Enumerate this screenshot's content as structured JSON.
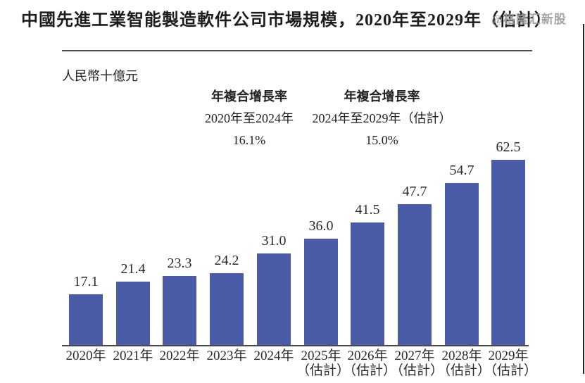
{
  "page": {
    "title": "中國先進工業智能製造軟件公司市場規模，2020年至2029年（估計）",
    "watermark": "@格隆汇新股"
  },
  "chart_data": {
    "type": "bar",
    "title": "中國先進工業智能製造軟件公司市場規模，2020年至2029年（估計）",
    "unit_label": "人民幣十億元",
    "ylabel": "人民幣十億元",
    "xlabel": "",
    "categories": [
      "2020年",
      "2021年",
      "2022年",
      "2023年",
      "2024年",
      "2025年",
      "2026年",
      "2027年",
      "2028年",
      "2029年"
    ],
    "estimated": [
      false,
      false,
      false,
      false,
      false,
      true,
      true,
      true,
      true,
      true
    ],
    "estimate_suffix": "（估計）",
    "values": [
      17.1,
      21.4,
      23.3,
      24.2,
      31.0,
      36.0,
      41.5,
      47.7,
      54.7,
      62.5
    ],
    "value_labels": [
      "17.1",
      "21.4",
      "23.3",
      "24.2",
      "31.0",
      "36.0",
      "41.5",
      "47.7",
      "54.7",
      "62.5"
    ],
    "bar_color": "#4a5ba8",
    "ylim": [
      0,
      65
    ],
    "grid": false,
    "legend": "none",
    "annotations": [
      {
        "label": "年複合增長率",
        "period": "2020年至2024年",
        "value": "16.1%"
      },
      {
        "label": "年複合增長率",
        "period": "2024年至2029年（估計）",
        "value": "15.0%"
      }
    ]
  }
}
